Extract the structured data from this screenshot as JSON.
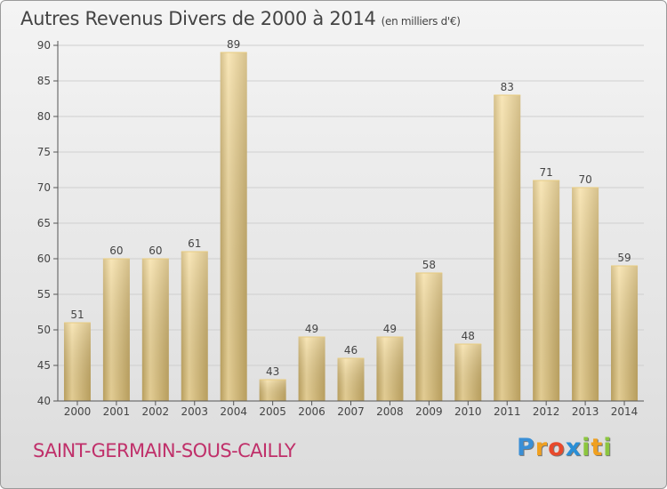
{
  "title": {
    "main": "Autres Revenus Divers de 2000 à 2014",
    "unit": "(en milliers d'€)"
  },
  "commune": "SAINT-GERMAIN-SOUS-CAILLY",
  "logo": {
    "text": "Proxiti",
    "letters": [
      "P",
      "r",
      "o",
      "x",
      "i",
      "t",
      "i"
    ],
    "colors": [
      "#3a8fd6",
      "#f0a020",
      "#e84a2c",
      "#2a8fd6",
      "#8cc63f",
      "#f0a020",
      "#8cc63f"
    ]
  },
  "colors": {
    "bar_light": "#f6dea0",
    "bar_dark": "#c8ac66",
    "grid": "#cfcfcf",
    "axis": "#555555"
  },
  "chart_data": {
    "type": "bar",
    "categories": [
      "2000",
      "2001",
      "2002",
      "2003",
      "2004",
      "2005",
      "2006",
      "2007",
      "2008",
      "2009",
      "2010",
      "2011",
      "2012",
      "2013",
      "2014"
    ],
    "values": [
      51,
      60,
      60,
      61,
      89,
      43,
      49,
      46,
      49,
      58,
      48,
      83,
      71,
      70,
      59
    ],
    "title": "Autres Revenus Divers de 2000 à 2014",
    "subtitle": "(en milliers d'€)",
    "ylim": [
      40,
      90
    ],
    "yticks": [
      40,
      45,
      50,
      55,
      60,
      65,
      70,
      75,
      80,
      85,
      90
    ],
    "grid": true
  }
}
